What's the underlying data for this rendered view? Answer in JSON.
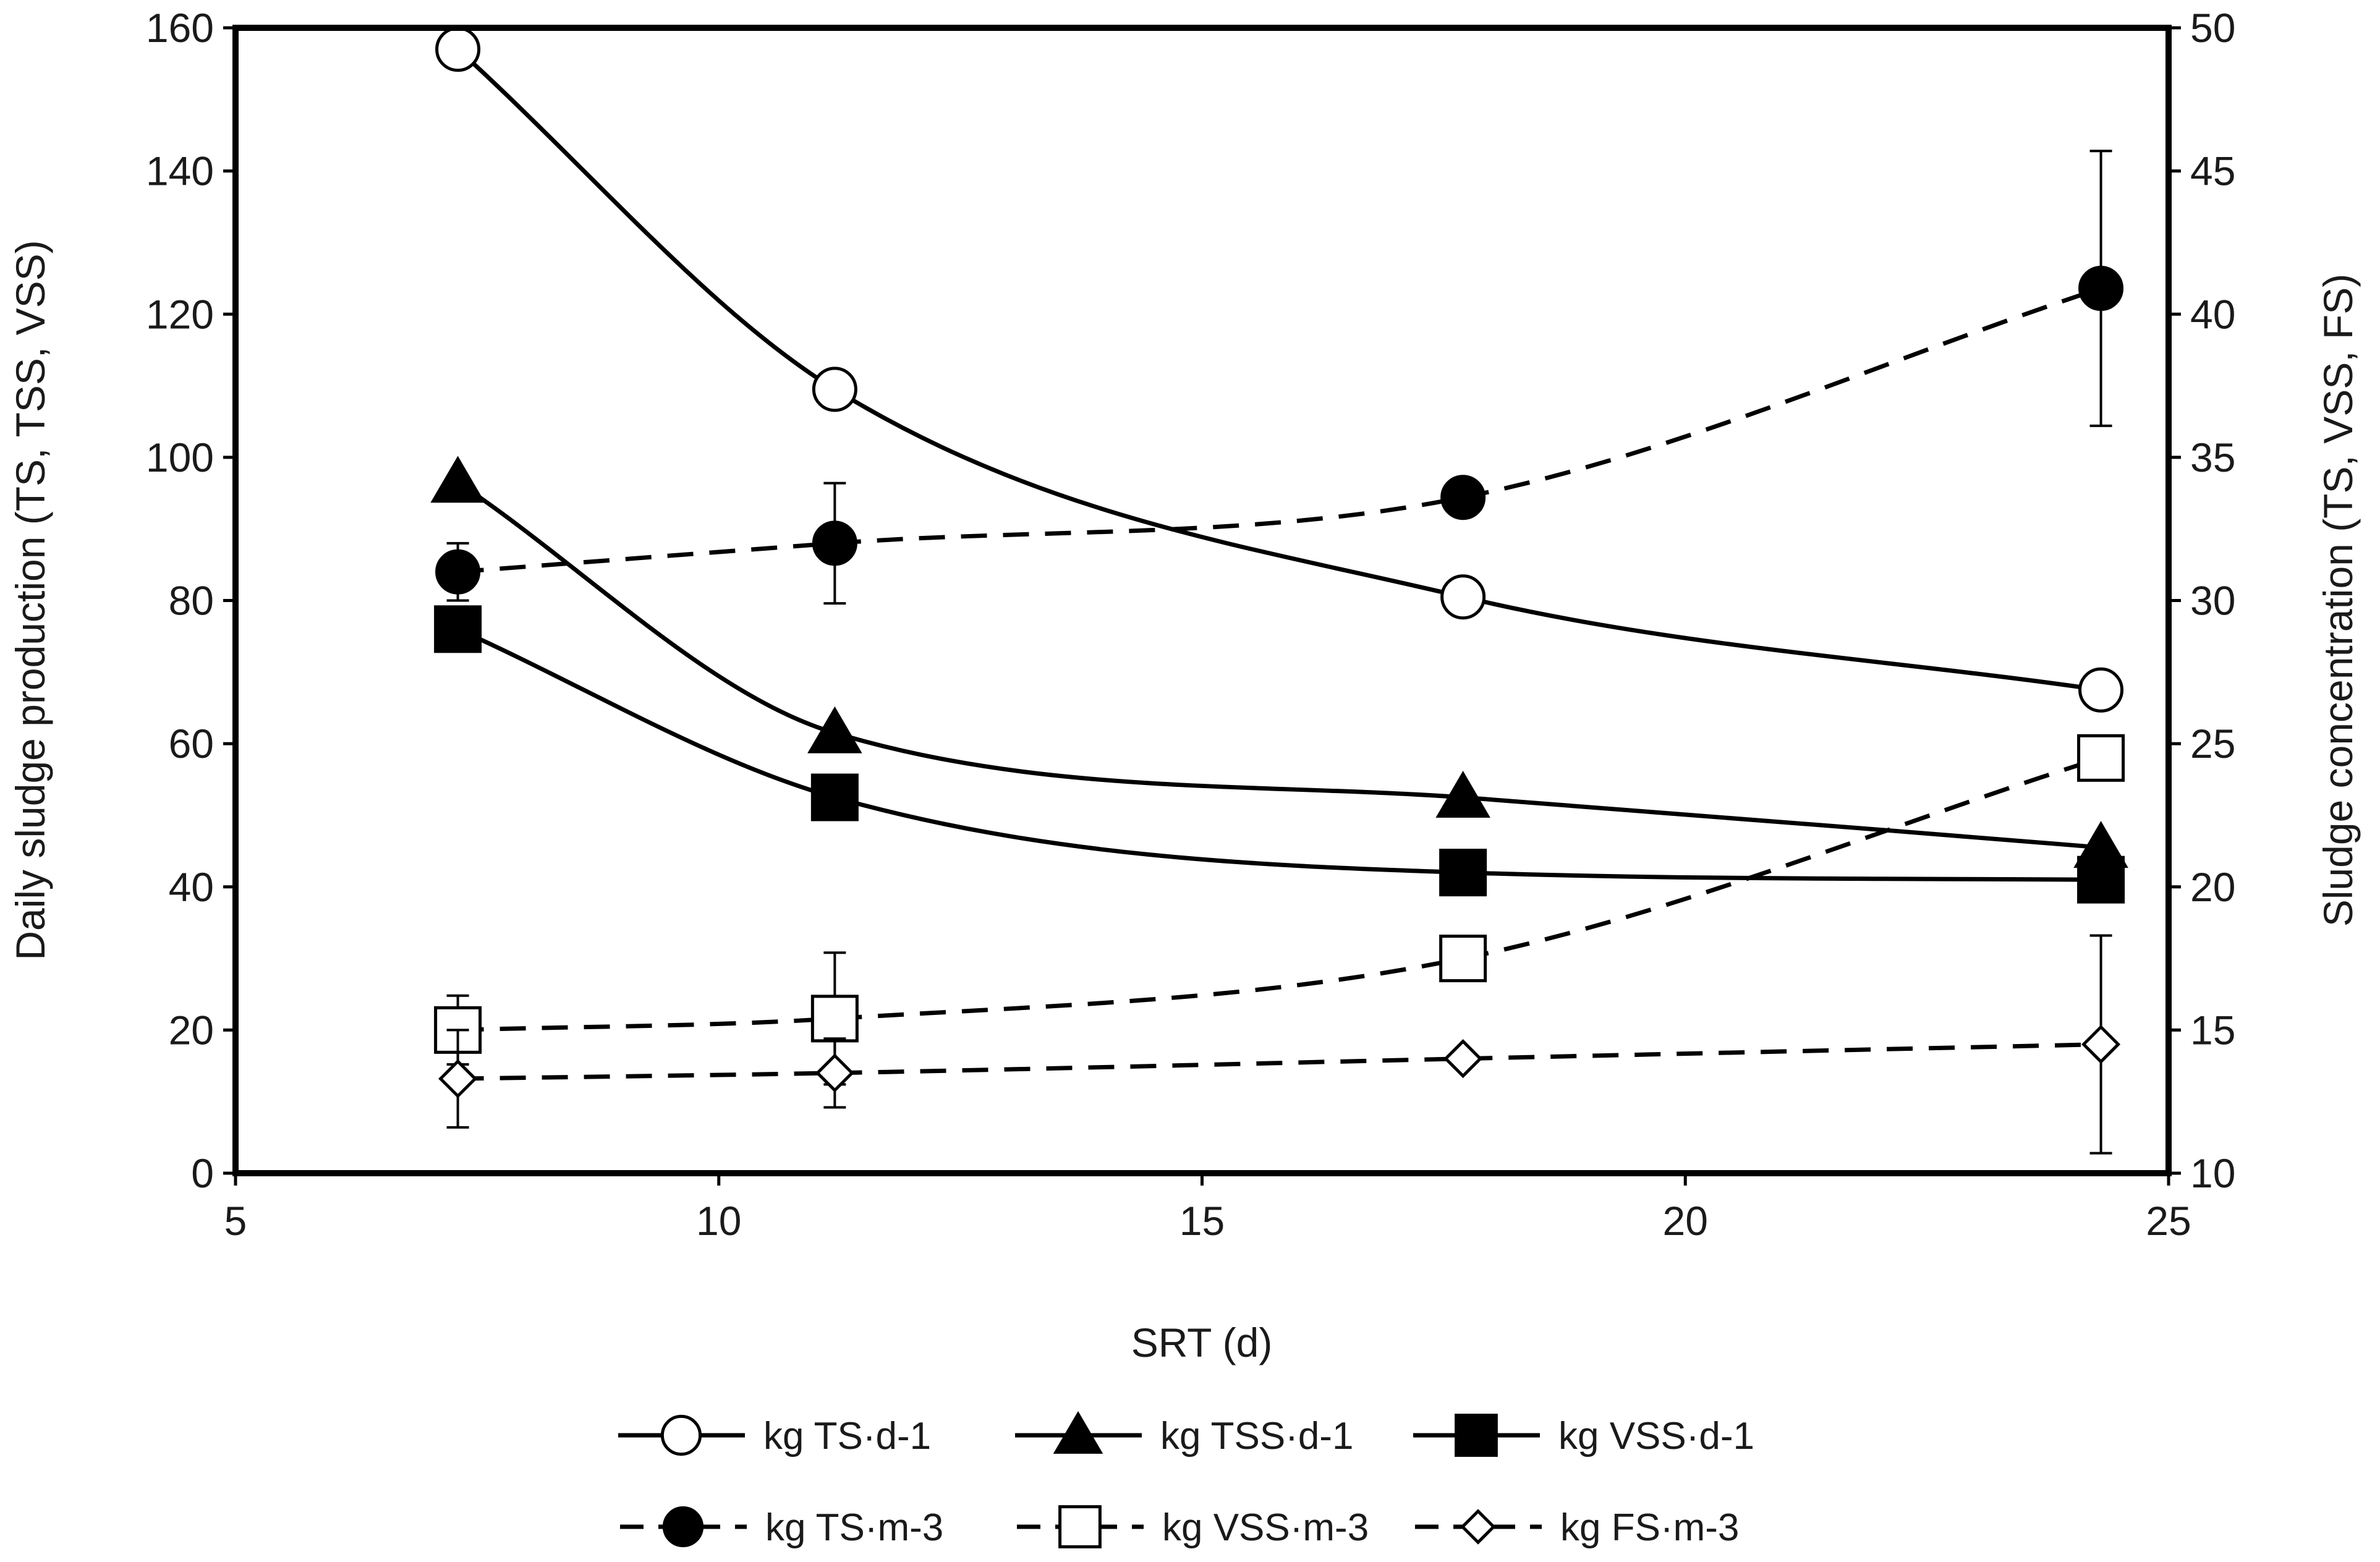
{
  "chart_data": {
    "type": "scatter",
    "title": "",
    "xlabel": "SRT (d)",
    "ylabel_left": "Daily sludge production (TS, TSS, VSS)",
    "ylabel_right": "Sludge concentration (TS, VSS, FS)",
    "xlim": [
      5,
      25
    ],
    "ylim_left": [
      0,
      160
    ],
    "ylim_right": [
      10,
      50
    ],
    "x_ticks": [
      5,
      10,
      15,
      20,
      25
    ],
    "y_left_ticks": [
      0,
      20,
      40,
      60,
      80,
      100,
      120,
      140,
      160
    ],
    "y_right_ticks": [
      10,
      15,
      20,
      25,
      30,
      35,
      40,
      45,
      50
    ],
    "grid": false,
    "legend_position": "bottom",
    "series": [
      {
        "name": "kg TS·d-1",
        "axis": "left",
        "line": "solid",
        "marker": "circle-open",
        "x": [
          7.3,
          11.2,
          17.7,
          24.3
        ],
        "values": [
          157,
          109.5,
          80.5,
          67.5
        ],
        "errors": []
      },
      {
        "name": "kg TSS·d-1",
        "axis": "left",
        "line": "solid",
        "marker": "triangle-filled",
        "x": [
          7.3,
          11.2,
          17.7,
          24.3
        ],
        "values": [
          96.5,
          61.5,
          52.5,
          45.5
        ],
        "errors": []
      },
      {
        "name": "kg VSS·d-1",
        "axis": "left",
        "line": "solid",
        "marker": "square-filled",
        "x": [
          7.3,
          11.2,
          17.7,
          24.3
        ],
        "values": [
          76,
          52.5,
          42,
          41
        ],
        "errors": []
      },
      {
        "name": "kg TS·m-3",
        "axis": "right",
        "line": "dashed",
        "marker": "circle-filled",
        "x": [
          7.3,
          11.2,
          17.7,
          24.3
        ],
        "values": [
          31,
          32,
          33.6,
          40.9
        ],
        "errors": [
          1,
          2.1,
          0,
          4.8
        ]
      },
      {
        "name": "kg VSS·m-3",
        "axis": "right",
        "line": "dashed",
        "marker": "square-open",
        "x": [
          7.3,
          11.2,
          17.7,
          24.3
        ],
        "values": [
          15,
          15.4,
          17.5,
          24.5
        ],
        "errors": [
          1.2,
          2.3,
          0,
          0
        ]
      },
      {
        "name": "kg FS·m-3",
        "axis": "right",
        "line": "dashed",
        "marker": "diamond-open",
        "x": [
          7.3,
          11.2,
          17.7,
          24.3
        ],
        "values": [
          13.3,
          13.5,
          14,
          14.5
        ],
        "errors": [
          1.7,
          1.2,
          0,
          3.8
        ]
      }
    ]
  },
  "colors": {
    "ink": "#000000",
    "fill_open": "#ffffff"
  }
}
